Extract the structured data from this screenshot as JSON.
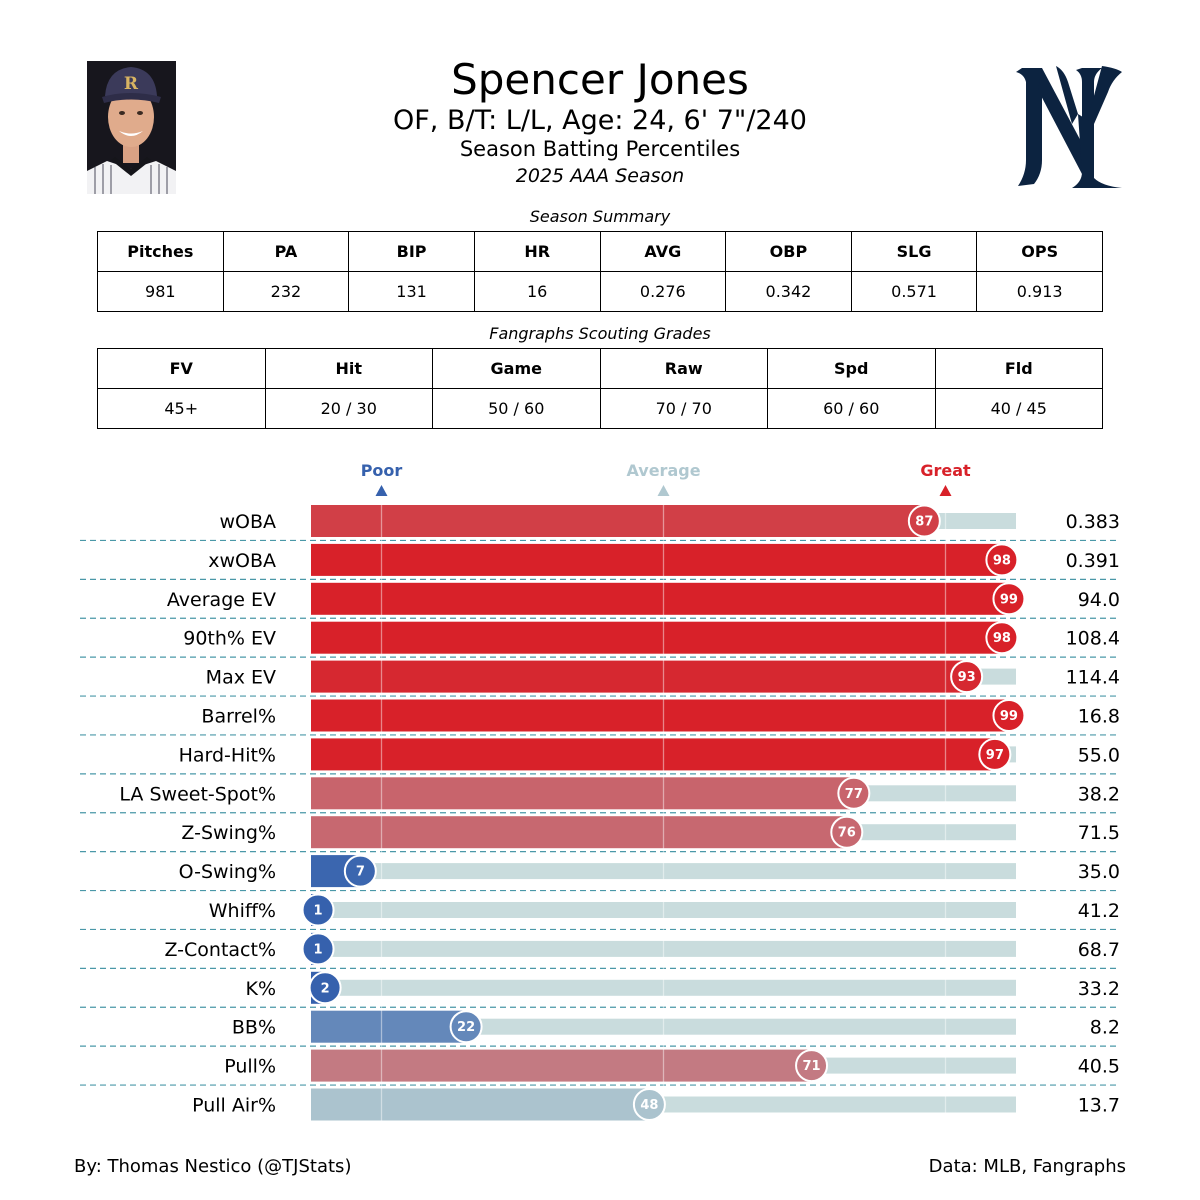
{
  "header": {
    "player_name": "Spencer Jones",
    "bio": "OF, B/T: L/L, Age: 24, 6' 7\"/240",
    "subtitle": "Season Batting Percentiles",
    "season": "2025 AAA Season"
  },
  "summary": {
    "title": "Season Summary",
    "headers": [
      "Pitches",
      "PA",
      "BIP",
      "HR",
      "AVG",
      "OBP",
      "SLG",
      "OPS"
    ],
    "values": [
      "981",
      "232",
      "131",
      "16",
      "0.276",
      "0.342",
      "0.571",
      "0.913"
    ]
  },
  "grades": {
    "title": "Fangraphs Scouting Grades",
    "headers": [
      "FV",
      "Hit",
      "Game",
      "Raw",
      "Spd",
      "Fld"
    ],
    "values": [
      "45+",
      "20 / 30",
      "50 / 60",
      "70 / 70",
      "60 / 60",
      "40 / 45"
    ]
  },
  "chart_data": {
    "type": "bar",
    "orientation": "horizontal",
    "xlim": [
      0,
      100
    ],
    "reference_lines": [
      10,
      50,
      90
    ],
    "scale_labels": [
      {
        "label": "Poor",
        "value": 10,
        "color": "#3661ad"
      },
      {
        "label": "Average",
        "value": 50,
        "color": "#b0c8d0"
      },
      {
        "label": "Great",
        "value": 90,
        "color": "#d82129"
      }
    ],
    "metrics": [
      {
        "name": "wOBA",
        "percentile": 87,
        "value": "0.383"
      },
      {
        "name": "xwOBA",
        "percentile": 98,
        "value": "0.391"
      },
      {
        "name": "Average EV",
        "percentile": 99,
        "value": "94.0"
      },
      {
        "name": "90th% EV",
        "percentile": 98,
        "value": "108.4"
      },
      {
        "name": "Max EV",
        "percentile": 93,
        "value": "114.4"
      },
      {
        "name": "Barrel%",
        "percentile": 99,
        "value": "16.8"
      },
      {
        "name": "Hard-Hit%",
        "percentile": 97,
        "value": "55.0"
      },
      {
        "name": "LA Sweet-Spot%",
        "percentile": 77,
        "value": "38.2"
      },
      {
        "name": "Z-Swing%",
        "percentile": 76,
        "value": "71.5"
      },
      {
        "name": "O-Swing%",
        "percentile": 7,
        "value": "35.0"
      },
      {
        "name": "Whiff%",
        "percentile": 1,
        "value": "41.2"
      },
      {
        "name": "Z-Contact%",
        "percentile": 1,
        "value": "68.7"
      },
      {
        "name": "K%",
        "percentile": 2,
        "value": "33.2"
      },
      {
        "name": "BB%",
        "percentile": 22,
        "value": "8.2"
      },
      {
        "name": "Pull%",
        "percentile": 71,
        "value": "40.5"
      },
      {
        "name": "Pull Air%",
        "percentile": 48,
        "value": "13.7"
      }
    ]
  },
  "colors": {
    "track": "#c9dcdd",
    "divider": "#4a98a8",
    "logo": "#0c2340"
  },
  "footer": {
    "credit": "By: Thomas Nestico (@TJStats)",
    "source": "Data: MLB, Fangraphs"
  }
}
